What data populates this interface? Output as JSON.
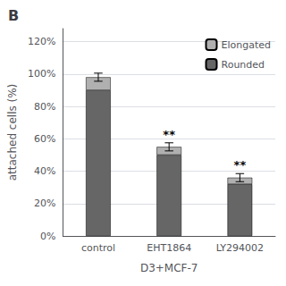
{
  "chart_data": {
    "type": "bar",
    "stacked": true,
    "title": "B",
    "xlabel": "D3+MCF-7",
    "ylabel": "attached cells (%)",
    "categories": [
      "control",
      "EHT1864",
      "LY294002"
    ],
    "series": [
      {
        "name": "Rounded",
        "color": "#666666",
        "values": [
          0.9,
          0.5,
          0.32
        ]
      },
      {
        "name": "Elongated",
        "color": "#b0b0b0",
        "values": [
          0.08,
          0.05,
          0.04
        ]
      }
    ],
    "errors": [
      0.025,
      0.025,
      0.025
    ],
    "annotations": [
      null,
      "**",
      "**"
    ],
    "ylim": [
      0,
      1.28
    ],
    "yticks": [
      {
        "value": 0.0,
        "label": "0%"
      },
      {
        "value": 0.2,
        "label": "20%"
      },
      {
        "value": 0.4,
        "label": "40%"
      },
      {
        "value": 0.6,
        "label": "60%"
      },
      {
        "value": 0.8,
        "label": "80%"
      },
      {
        "value": 1.0,
        "label": "100%"
      },
      {
        "value": 1.2,
        "label": "120%"
      }
    ],
    "grid": true,
    "legend": "upper right"
  }
}
